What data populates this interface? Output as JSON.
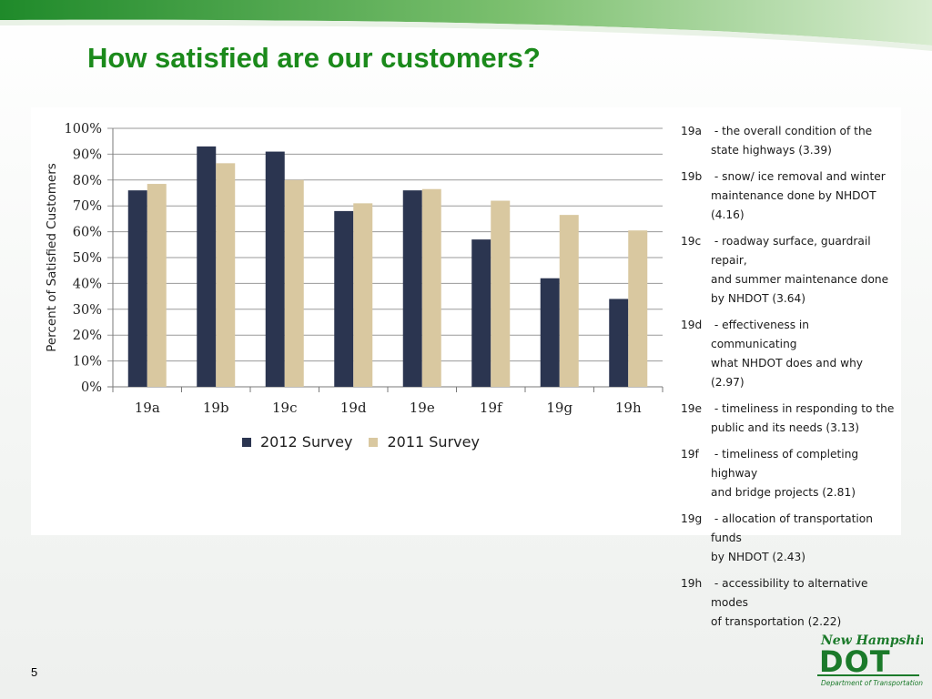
{
  "slide": {
    "title": "How satisfied are our customers?",
    "page_number": "5"
  },
  "chart_data": {
    "type": "bar",
    "categories": [
      "19a",
      "19b",
      "19c",
      "19d",
      "19e",
      "19f",
      "19g",
      "19h"
    ],
    "series": [
      {
        "name": "2012 Survey",
        "color": "#2b3550",
        "values": [
          76,
          93,
          91,
          68,
          76,
          57,
          42,
          34
        ]
      },
      {
        "name": "2011 Survey",
        "color": "#d9c8a0",
        "values": [
          78.5,
          86.5,
          80,
          71,
          76.5,
          72,
          66.5,
          60.5
        ]
      }
    ],
    "ylabel": "Percent of Satisfied Customers",
    "ylim": [
      0,
      100
    ],
    "yticks": [
      "0%",
      "10%",
      "20%",
      "30%",
      "40%",
      "50%",
      "60%",
      "70%",
      "80%",
      "90%",
      "100%"
    ],
    "grid": true,
    "legend_position": "bottom"
  },
  "notes": [
    {
      "code": "19a",
      "dash": " - ",
      "lines": [
        "the overall condition of the",
        "state highways (3.39)"
      ]
    },
    {
      "code": "19b",
      "dash": " - ",
      "lines": [
        "snow/ ice removal and winter",
        "maintenance done by NHDOT",
        "(4.16)"
      ]
    },
    {
      "code": "19c",
      "dash": " - ",
      "lines": [
        "roadway surface, guardrail repair,",
        "and summer maintenance done",
        "by NHDOT (3.64)"
      ]
    },
    {
      "code": "19d",
      "dash": " - ",
      "lines": [
        "effectiveness in communicating",
        "what NHDOT does and why (2.97)"
      ]
    },
    {
      "code": "19e",
      "dash": " - ",
      "lines": [
        "timeliness in responding to the",
        "public and its needs (3.13)"
      ]
    },
    {
      "code": "19f",
      "dash": " - ",
      "lines": [
        "timeliness of completing highway",
        "and bridge projects (2.81)"
      ]
    },
    {
      "code": "19g",
      "dash": " - ",
      "lines": [
        "allocation of transportation funds",
        "by NHDOT (2.43)"
      ]
    },
    {
      "code": "19h",
      "dash": " - ",
      "lines": [
        "accessibility to alternative modes",
        "of transportation (2.22)"
      ]
    }
  ],
  "logo": {
    "line1": "New Hampshire",
    "line2": "DOT",
    "line3": "Department of Transportation",
    "color": "#1b7a2a"
  }
}
